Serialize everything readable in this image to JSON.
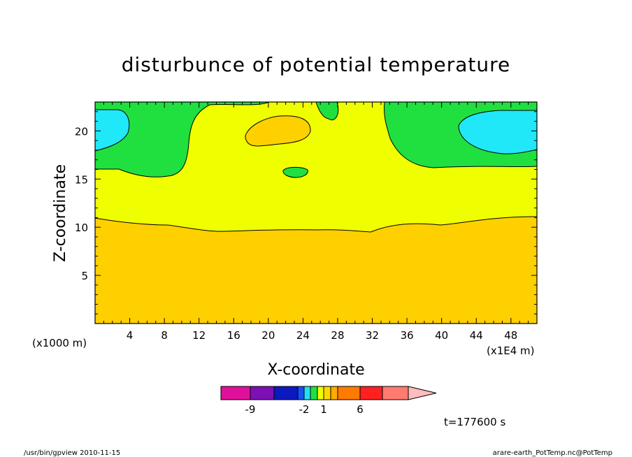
{
  "chart_data": {
    "type": "contour",
    "title": "disturbunce of potential temperature",
    "xlabel": "X-coordinate",
    "ylabel": "Z-coordinate",
    "x_unit": "(x1000 m)",
    "x_scale_note": "(x1E4 m)",
    "x_ticks": [
      "4",
      "8",
      "12",
      "16",
      "20",
      "24",
      "28",
      "32",
      "36",
      "40",
      "44",
      "48"
    ],
    "y_ticks": [
      "5",
      "10",
      "15",
      "20"
    ],
    "xlim": [
      0,
      51
    ],
    "ylim": [
      0,
      23
    ],
    "colorbar": {
      "labels": [
        "-9",
        "-2",
        "1",
        "6"
      ],
      "colors": [
        "#e0109a",
        "#7d10b4",
        "#0c18c0",
        "#1850f0",
        "#20e0f8",
        "#20e040",
        "#f0ff00",
        "#ffd800",
        "#ffaa00",
        "#ff7a00",
        "#ff2020",
        "#ff7a70",
        "#ffbcbc"
      ]
    },
    "regions": [
      {
        "level": "0 to 1",
        "color": "#f0ff00",
        "description_z": "about 10 to 16"
      },
      {
        "level": "1 to 2",
        "color": "#ffd000",
        "description_z": "0 to about 10"
      },
      {
        "level": "-1 to 0",
        "color": "#20e040",
        "description_z": "about 16 to 23"
      },
      {
        "level": "-2 to -1",
        "color": "#20e8f8",
        "description_z": "about 18 to 22"
      }
    ]
  },
  "annotations": {
    "time": "t=177600 s",
    "footer_left": "/usr/bin/gpview  2010-11-15",
    "footer_right": "arare-earth_PotTemp.nc@PotTemp"
  }
}
